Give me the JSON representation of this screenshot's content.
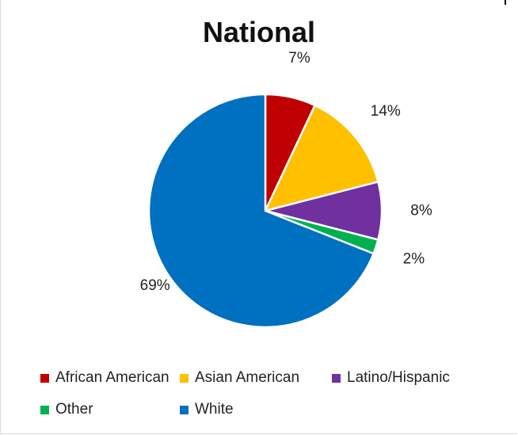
{
  "chart_data": {
    "type": "pie",
    "title": "National",
    "slices": [
      {
        "name": "African American",
        "value": 7,
        "label": "7%",
        "color": "#C00000"
      },
      {
        "name": "Asian American",
        "value": 14,
        "label": "14%",
        "color": "#FFC000"
      },
      {
        "name": "Latino/Hispanic",
        "value": 8,
        "label": "8%",
        "color": "#7030A0"
      },
      {
        "name": "Other",
        "value": 2,
        "label": "2%",
        "color": "#00B050"
      },
      {
        "name": "White",
        "value": 69,
        "label": "69%",
        "color": "#0070C0"
      }
    ],
    "legend_position": "bottom"
  }
}
